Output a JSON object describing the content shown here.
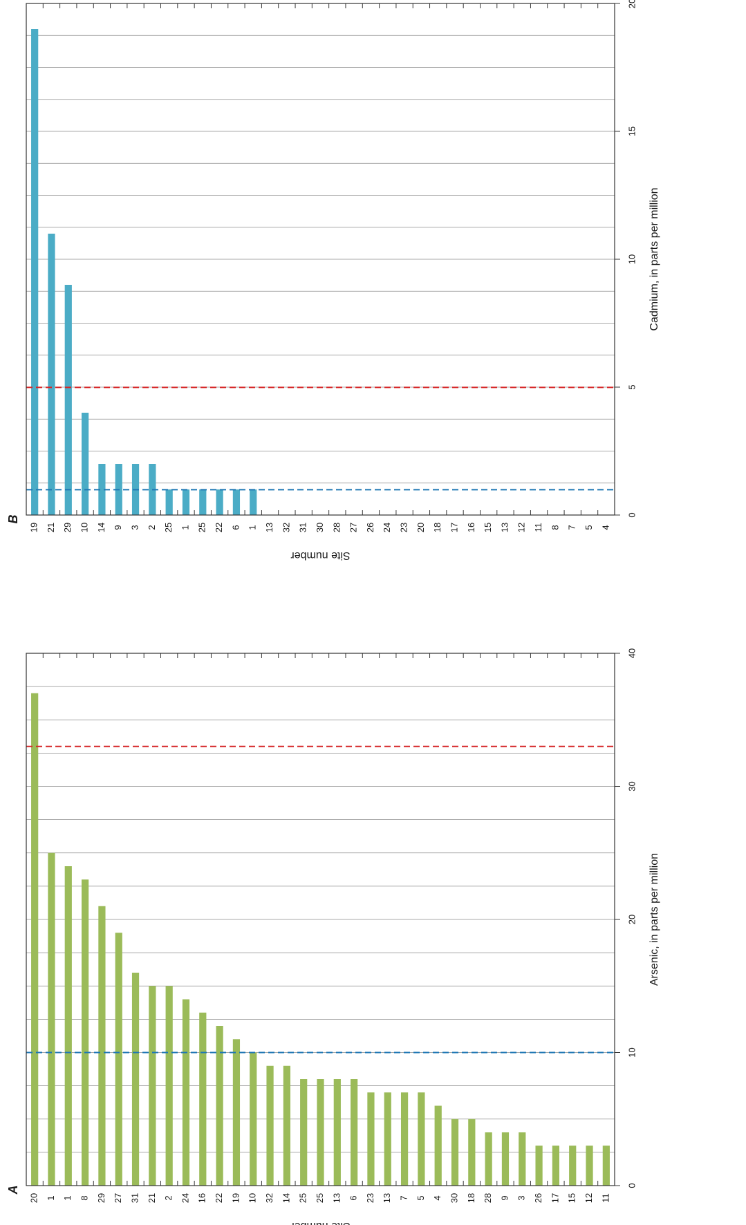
{
  "chart_data": [
    {
      "panel_label": "A",
      "type": "bar",
      "orientation": "rotated-90",
      "categories": [
        "20",
        "1",
        "1",
        "8",
        "29",
        "27",
        "31",
        "21",
        "2",
        "24",
        "16",
        "22",
        "19",
        "10",
        "32",
        "14",
        "25",
        "25",
        "13",
        "6",
        "23",
        "13",
        "7",
        "5",
        "4",
        "30",
        "18",
        "28",
        "9",
        "3",
        "26",
        "17",
        "15",
        "12",
        "11"
      ],
      "values": [
        37,
        25,
        24,
        23,
        21,
        19,
        16,
        15,
        15,
        14,
        13,
        12,
        11,
        10,
        9,
        9,
        8,
        8,
        8,
        8,
        7,
        7,
        7,
        7,
        6,
        5,
        5,
        4,
        4,
        4,
        3,
        3,
        3,
        3,
        3
      ],
      "ylabel": "Arsenic, in parts per million",
      "xlabel": "Site number",
      "ylim": [
        0,
        40
      ],
      "ticks": [
        "0",
        "10",
        "20",
        "30",
        "40"
      ],
      "reference_lines": [
        {
          "value": 33,
          "color": "#d62728"
        },
        {
          "value": 10,
          "color": "#1f77b4"
        }
      ],
      "bar_color": "#9bbb59",
      "grid": true
    },
    {
      "panel_label": "B",
      "type": "bar",
      "orientation": "rotated-90",
      "categories": [
        "19",
        "21",
        "29",
        "10",
        "14",
        "9",
        "3",
        "2",
        "25",
        "1",
        "25",
        "22",
        "6",
        "1",
        "13",
        "32",
        "31",
        "30",
        "28",
        "27",
        "26",
        "24",
        "23",
        "20",
        "18",
        "17",
        "16",
        "15",
        "13",
        "12",
        "11",
        "8",
        "7",
        "5",
        "4"
      ],
      "values": [
        19,
        11,
        9,
        4,
        2,
        2,
        2,
        2,
        1,
        1,
        1,
        1,
        1,
        1,
        0,
        0,
        0,
        0,
        0,
        0,
        0,
        0,
        0,
        0,
        0,
        0,
        0,
        0,
        0,
        0,
        0,
        0,
        0,
        0,
        0
      ],
      "ylabel": "Cadmium, in parts per million",
      "xlabel": "Site number",
      "ylim": [
        0,
        20
      ],
      "ticks": [
        "0",
        "5",
        "10",
        "15",
        "20"
      ],
      "reference_lines": [
        {
          "value": 4.99,
          "color": "#d62728"
        },
        {
          "value": 0.99,
          "color": "#1f77b4"
        }
      ],
      "bar_color": "#4bacc6",
      "grid": true
    }
  ]
}
